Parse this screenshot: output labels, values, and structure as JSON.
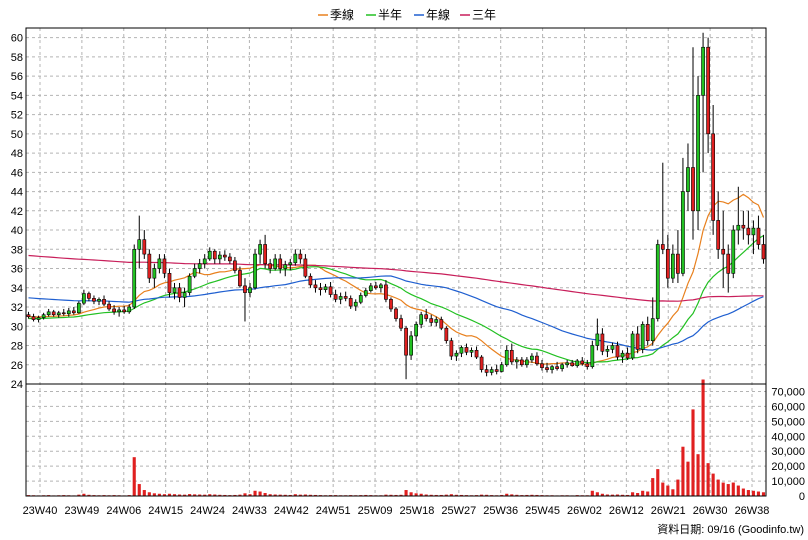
{
  "chart_data": {
    "type": "candlestick",
    "legend": [
      {
        "name": "季線",
        "color": "#e8801e"
      },
      {
        "name": "半年",
        "color": "#22c022"
      },
      {
        "name": "年線",
        "color": "#1f5fd0"
      },
      {
        "name": "三年",
        "color": "#c81e5a"
      }
    ],
    "x_ticks": [
      "23W40",
      "23W49",
      "24W06",
      "24W15",
      "24W24",
      "24W33",
      "24W42",
      "24W51",
      "25W09",
      "25W18",
      "25W27",
      "25W36",
      "25W45",
      "26W02",
      "26W12",
      "26W21",
      "26W30",
      "26W38"
    ],
    "price_axis": {
      "ylim": [
        24,
        61
      ],
      "ticks": [
        60,
        58,
        56,
        54,
        52,
        50,
        48,
        46,
        44,
        42,
        40,
        38,
        36,
        34,
        32,
        30,
        28,
        26,
        24
      ]
    },
    "volume_axis": {
      "ylim": [
        0,
        75000
      ],
      "ticks": [
        "70,000",
        "60,000",
        "50,000",
        "40,000",
        "30,000",
        "20,000",
        "10,000",
        "0"
      ],
      "values": [
        70000,
        60000,
        50000,
        40000,
        30000,
        20000,
        10000,
        0
      ]
    },
    "up_color": "#22c022",
    "down_color": "#e02020",
    "volume_color": "#e02020",
    "footer": "資料日期: 09/16  (Goodinfo.tw)",
    "candles": [
      [
        31.2,
        31.5,
        30.8,
        31.0,
        600
      ],
      [
        31.0,
        31.3,
        30.5,
        30.7,
        500
      ],
      [
        30.7,
        31.1,
        30.4,
        30.9,
        400
      ],
      [
        30.9,
        31.4,
        30.7,
        31.2,
        500
      ],
      [
        31.2,
        31.8,
        31.0,
        31.5,
        600
      ],
      [
        31.5,
        31.7,
        31.0,
        31.2,
        400
      ],
      [
        31.2,
        31.6,
        30.9,
        31.4,
        500
      ],
      [
        31.4,
        31.8,
        31.1,
        31.3,
        600
      ],
      [
        31.3,
        31.9,
        31.0,
        31.6,
        500
      ],
      [
        31.6,
        32.0,
        31.2,
        31.4,
        400
      ],
      [
        31.4,
        32.6,
        31.3,
        32.4,
        900
      ],
      [
        32.4,
        33.8,
        32.2,
        33.4,
        1500
      ],
      [
        33.4,
        33.6,
        32.6,
        32.9,
        800
      ],
      [
        32.9,
        33.2,
        32.3,
        32.6,
        600
      ],
      [
        32.6,
        33.0,
        32.2,
        32.8,
        500
      ],
      [
        32.8,
        33.2,
        32.1,
        32.3,
        600
      ],
      [
        32.3,
        32.6,
        31.6,
        31.8,
        500
      ],
      [
        31.8,
        32.2,
        31.2,
        31.5,
        600
      ],
      [
        31.5,
        32.0,
        31.0,
        31.7,
        500
      ],
      [
        31.7,
        32.1,
        31.3,
        31.5,
        400
      ],
      [
        31.5,
        32.3,
        31.3,
        32.0,
        600
      ],
      [
        32.0,
        38.5,
        31.8,
        38.0,
        26000
      ],
      [
        38.0,
        41.5,
        36.0,
        39.0,
        8000
      ],
      [
        39.0,
        40.0,
        37.0,
        37.5,
        4000
      ],
      [
        37.5,
        38.0,
        34.5,
        35.0,
        2500
      ],
      [
        35.0,
        36.5,
        34.0,
        36.0,
        1800
      ],
      [
        36.0,
        37.5,
        35.5,
        37.0,
        1500
      ],
      [
        37.0,
        37.5,
        35.0,
        35.5,
        1200
      ],
      [
        35.5,
        36.0,
        33.0,
        33.5,
        1500
      ],
      [
        33.5,
        34.5,
        32.8,
        34.0,
        1200
      ],
      [
        34.0,
        34.5,
        32.5,
        33.0,
        1000
      ],
      [
        33.0,
        34.0,
        32.0,
        33.5,
        900
      ],
      [
        33.5,
        35.5,
        33.2,
        35.2,
        1300
      ],
      [
        35.2,
        36.5,
        35.0,
        36.0,
        1100
      ],
      [
        36.0,
        37.0,
        35.5,
        36.5,
        1000
      ],
      [
        36.5,
        37.5,
        36.0,
        37.0,
        900
      ],
      [
        37.0,
        38.2,
        36.8,
        37.8,
        1200
      ],
      [
        37.8,
        38.0,
        36.5,
        37.0,
        1000
      ],
      [
        37.0,
        37.8,
        36.5,
        37.4,
        800
      ],
      [
        37.4,
        37.9,
        36.8,
        37.2,
        700
      ],
      [
        37.2,
        37.6,
        36.5,
        36.8,
        600
      ],
      [
        36.8,
        37.2,
        35.5,
        35.8,
        700
      ],
      [
        35.8,
        36.2,
        34.0,
        34.2,
        900
      ],
      [
        34.2,
        35.0,
        30.5,
        33.5,
        1800
      ],
      [
        33.5,
        34.5,
        33.0,
        34.0,
        1200
      ],
      [
        34.0,
        38.0,
        33.8,
        37.5,
        3500
      ],
      [
        37.5,
        39.0,
        36.5,
        38.5,
        3000
      ],
      [
        38.5,
        39.5,
        36.0,
        36.5,
        2000
      ],
      [
        36.5,
        37.0,
        35.5,
        36.0,
        1200
      ],
      [
        36.0,
        37.5,
        35.8,
        37.0,
        1000
      ],
      [
        37.0,
        37.5,
        35.5,
        36.0,
        900
      ],
      [
        36.0,
        36.8,
        35.2,
        36.4,
        800
      ],
      [
        36.4,
        37.0,
        35.8,
        36.6,
        700
      ],
      [
        36.6,
        38.0,
        36.3,
        37.5,
        1200
      ],
      [
        37.5,
        38.0,
        36.5,
        37.0,
        900
      ],
      [
        37.0,
        37.5,
        35.0,
        35.2,
        1000
      ],
      [
        35.2,
        35.5,
        34.0,
        34.3,
        800
      ],
      [
        34.3,
        34.8,
        33.5,
        34.0,
        700
      ],
      [
        34.0,
        34.5,
        33.2,
        33.8,
        600
      ],
      [
        33.8,
        34.4,
        33.5,
        34.1,
        500
      ],
      [
        34.1,
        34.6,
        33.0,
        33.3,
        600
      ],
      [
        33.3,
        33.8,
        32.5,
        32.8,
        600
      ],
      [
        32.8,
        33.5,
        32.3,
        33.1,
        500
      ],
      [
        33.1,
        33.6,
        32.6,
        32.9,
        500
      ],
      [
        32.9,
        33.2,
        31.8,
        32.1,
        600
      ],
      [
        32.1,
        32.8,
        31.6,
        32.5,
        500
      ],
      [
        32.5,
        33.5,
        32.3,
        33.2,
        600
      ],
      [
        33.2,
        34.0,
        33.0,
        33.7,
        700
      ],
      [
        33.7,
        34.5,
        33.5,
        34.2,
        600
      ],
      [
        34.2,
        34.6,
        33.8,
        34.0,
        500
      ],
      [
        34.0,
        34.5,
        33.5,
        34.3,
        500
      ],
      [
        34.3,
        34.8,
        32.5,
        32.8,
        900
      ],
      [
        32.8,
        33.0,
        31.5,
        31.8,
        800
      ],
      [
        31.8,
        32.0,
        30.5,
        30.8,
        700
      ],
      [
        30.8,
        31.2,
        29.5,
        29.8,
        800
      ],
      [
        29.8,
        30.0,
        24.5,
        27.0,
        4000
      ],
      [
        27.0,
        29.5,
        26.5,
        29.0,
        2500
      ],
      [
        29.0,
        30.5,
        28.5,
        30.2,
        1800
      ],
      [
        30.2,
        31.5,
        29.8,
        31.2,
        1500
      ],
      [
        31.2,
        31.8,
        30.5,
        30.8,
        1000
      ],
      [
        30.8,
        31.2,
        30.0,
        30.4,
        800
      ],
      [
        30.4,
        31.0,
        30.0,
        30.7,
        700
      ],
      [
        30.7,
        31.0,
        29.6,
        29.8,
        700
      ],
      [
        29.8,
        30.0,
        28.2,
        28.5,
        900
      ],
      [
        28.5,
        28.8,
        26.5,
        26.9,
        1200
      ],
      [
        26.9,
        27.5,
        26.4,
        27.2,
        800
      ],
      [
        27.2,
        28.0,
        26.8,
        27.8,
        700
      ],
      [
        27.8,
        28.2,
        27.0,
        27.3,
        600
      ],
      [
        27.3,
        27.8,
        26.8,
        27.5,
        500
      ],
      [
        27.5,
        27.9,
        26.6,
        26.8,
        600
      ],
      [
        26.8,
        27.0,
        25.2,
        25.5,
        900
      ],
      [
        25.5,
        26.0,
        24.8,
        25.2,
        800
      ],
      [
        25.2,
        25.8,
        24.9,
        25.5,
        600
      ],
      [
        25.5,
        26.0,
        25.0,
        25.3,
        500
      ],
      [
        25.3,
        26.3,
        25.2,
        26.0,
        700
      ],
      [
        26.0,
        28.0,
        25.8,
        27.5,
        1500
      ],
      [
        27.5,
        28.2,
        26.0,
        26.3,
        1100
      ],
      [
        26.3,
        26.8,
        25.6,
        26.5,
        800
      ],
      [
        26.5,
        26.8,
        25.8,
        26.0,
        600
      ],
      [
        26.0,
        26.8,
        25.7,
        26.5,
        700
      ],
      [
        26.5,
        27.2,
        26.2,
        26.9,
        800
      ],
      [
        26.9,
        27.3,
        25.9,
        26.1,
        700
      ],
      [
        26.1,
        26.5,
        25.4,
        25.7,
        600
      ],
      [
        25.7,
        26.2,
        25.2,
        25.5,
        500
      ],
      [
        25.5,
        26.0,
        25.1,
        25.8,
        500
      ],
      [
        25.8,
        26.3,
        25.4,
        25.6,
        400
      ],
      [
        25.6,
        26.2,
        25.3,
        26.0,
        500
      ],
      [
        26.0,
        26.5,
        25.7,
        26.2,
        500
      ],
      [
        26.2,
        26.5,
        25.8,
        25.9,
        400
      ],
      [
        25.9,
        26.6,
        25.7,
        26.4,
        600
      ],
      [
        26.4,
        26.8,
        25.9,
        26.1,
        500
      ],
      [
        26.1,
        26.5,
        25.5,
        25.8,
        500
      ],
      [
        25.8,
        28.5,
        25.6,
        28.0,
        3500
      ],
      [
        28.0,
        30.8,
        27.5,
        29.2,
        2500
      ],
      [
        29.2,
        29.8,
        27.0,
        27.4,
        1500
      ],
      [
        27.4,
        28.0,
        26.8,
        27.6,
        1000
      ],
      [
        27.6,
        28.3,
        27.2,
        28.0,
        900
      ],
      [
        28.0,
        28.4,
        26.5,
        26.8,
        1000
      ],
      [
        26.8,
        27.5,
        26.2,
        27.2,
        800
      ],
      [
        27.2,
        27.8,
        26.5,
        26.7,
        700
      ],
      [
        26.7,
        29.5,
        26.5,
        29.2,
        2500
      ],
      [
        29.2,
        30.0,
        27.2,
        27.6,
        2000
      ],
      [
        27.6,
        30.5,
        27.2,
        30.2,
        3500
      ],
      [
        30.2,
        31.0,
        28.0,
        28.5,
        3000
      ],
      [
        28.5,
        33.0,
        28.0,
        30.8,
        12000
      ],
      [
        30.8,
        39.0,
        30.5,
        38.5,
        18000
      ],
      [
        38.5,
        47.0,
        37.5,
        38.0,
        9000
      ],
      [
        38.0,
        39.5,
        34.0,
        35.0,
        7000
      ],
      [
        35.0,
        38.5,
        34.5,
        37.5,
        4500
      ],
      [
        37.5,
        40.0,
        34.5,
        35.5,
        11000
      ],
      [
        35.5,
        47.5,
        35.2,
        44.0,
        33000
      ],
      [
        44.0,
        49.0,
        42.0,
        46.5,
        23000
      ],
      [
        46.5,
        59.0,
        39.0,
        42.0,
        58000
      ],
      [
        42.0,
        56.0,
        40.0,
        54.0,
        28000
      ],
      [
        54.0,
        60.5,
        46.0,
        59.0,
        78000
      ],
      [
        59.0,
        60.0,
        48.0,
        50.0,
        22000
      ],
      [
        50.0,
        53.0,
        39.5,
        41.0,
        15000
      ],
      [
        41.0,
        44.0,
        37.0,
        38.0,
        11000
      ],
      [
        38.0,
        42.0,
        34.0,
        37.5,
        9000
      ],
      [
        37.5,
        38.5,
        33.5,
        35.5,
        8000
      ],
      [
        35.5,
        40.5,
        35.0,
        40.0,
        9000
      ],
      [
        40.0,
        44.5,
        38.5,
        40.5,
        7000
      ],
      [
        40.5,
        42.0,
        39.0,
        40.2,
        5000
      ],
      [
        40.2,
        42.0,
        38.5,
        39.5,
        4000
      ],
      [
        39.5,
        41.0,
        37.5,
        40.2,
        3500
      ],
      [
        40.2,
        41.5,
        38.0,
        38.5,
        3000
      ],
      [
        38.5,
        39.5,
        36.5,
        37.0,
        2500
      ]
    ]
  }
}
